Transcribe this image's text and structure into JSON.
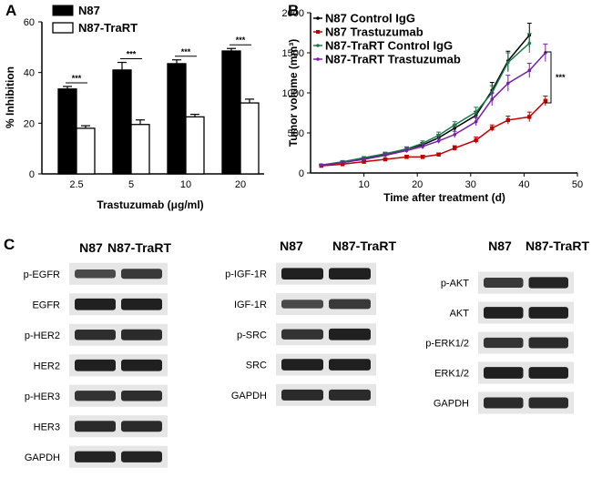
{
  "panels": {
    "a": "A",
    "b": "B",
    "c": "C"
  },
  "chart_data": [
    {
      "type": "bar",
      "title": "",
      "xlabel": "Trastuzumab (μg/ml)",
      "ylabel": "% Inhibition",
      "categories": [
        "2.5",
        "5",
        "10",
        "20"
      ],
      "ylim": [
        0,
        60
      ],
      "yticks": [
        "0",
        "20",
        "40",
        "60"
      ],
      "series": [
        {
          "name": "N87",
          "color": "#000000",
          "values": [
            33.5,
            41,
            43.5,
            48.5
          ],
          "errors": [
            1.0,
            3.0,
            1.5,
            1.0
          ]
        },
        {
          "name": "N87-TraRT",
          "color": "#ffffff",
          "values": [
            18,
            19.5,
            22.5,
            28
          ],
          "errors": [
            1.0,
            1.8,
            1.0,
            1.5
          ]
        }
      ],
      "significance": [
        "***",
        "***",
        "***",
        "***"
      ],
      "legend": "top-left"
    },
    {
      "type": "line",
      "title": "",
      "xlabel": "Time after treatment (d)",
      "ylabel": "Tumor volume (mm³)",
      "xlim": [
        0,
        50
      ],
      "ylim": [
        0,
        2000
      ],
      "xticks": [
        "10",
        "20",
        "30",
        "40",
        "50"
      ],
      "yticks": [
        "0",
        "500",
        "1000",
        "1500",
        "2000"
      ],
      "series": [
        {
          "name": "N87 Control IgG",
          "color": "#000000",
          "x": [
            2,
            6,
            10,
            14,
            18,
            21,
            24,
            27,
            31,
            34,
            37,
            41
          ],
          "y": [
            100,
            130,
            175,
            230,
            300,
            350,
            440,
            560,
            720,
            1030,
            1400,
            1720
          ],
          "err": [
            10,
            15,
            15,
            20,
            25,
            30,
            40,
            40,
            50,
            100,
            120,
            150
          ]
        },
        {
          "name": "N87 Trastuzumab",
          "color": "#c00000",
          "x": [
            2,
            6,
            10,
            14,
            18,
            21,
            24,
            27,
            31,
            34,
            37,
            41,
            44
          ],
          "y": [
            90,
            110,
            140,
            170,
            200,
            200,
            230,
            310,
            410,
            560,
            660,
            700,
            900
          ],
          "err": [
            10,
            10,
            15,
            15,
            20,
            20,
            20,
            30,
            40,
            40,
            50,
            60,
            60
          ]
        },
        {
          "name": "N87-TraRT Control IgG",
          "color": "#1a7a4a",
          "x": [
            2,
            6,
            10,
            14,
            18,
            21,
            24,
            27,
            31,
            34,
            37,
            41
          ],
          "y": [
            100,
            140,
            190,
            240,
            300,
            370,
            470,
            600,
            760,
            1000,
            1380,
            1620
          ],
          "err": [
            10,
            15,
            15,
            20,
            25,
            30,
            40,
            40,
            60,
            90,
            120,
            120
          ]
        },
        {
          "name": "N87-TraRT Trastuzumab",
          "color": "#7a1fa8",
          "x": [
            2,
            6,
            10,
            14,
            18,
            21,
            24,
            27,
            31,
            34,
            37,
            41,
            44
          ],
          "y": [
            95,
            130,
            170,
            220,
            280,
            330,
            400,
            480,
            640,
            920,
            1120,
            1280,
            1500
          ],
          "err": [
            10,
            15,
            15,
            20,
            25,
            30,
            30,
            40,
            50,
            80,
            100,
            90,
            110
          ]
        }
      ],
      "significance": "***",
      "legend": "top-left"
    }
  ],
  "western_blots": {
    "columns": [
      "N87",
      "N87-TraRT"
    ],
    "groups": [
      {
        "labels": [
          "p-EGFR",
          "EGFR",
          "p-HER2",
          "HER2",
          "p-HER3",
          "HER3",
          "GAPDH"
        ]
      },
      {
        "labels": [
          "p-IGF-1R",
          "IGF-1R",
          "p-SRC",
          "SRC",
          "GAPDH"
        ]
      },
      {
        "labels": [
          "p-AKT",
          "AKT",
          "p-ERK1/2",
          "ERK1/2",
          "GAPDH"
        ]
      }
    ]
  }
}
